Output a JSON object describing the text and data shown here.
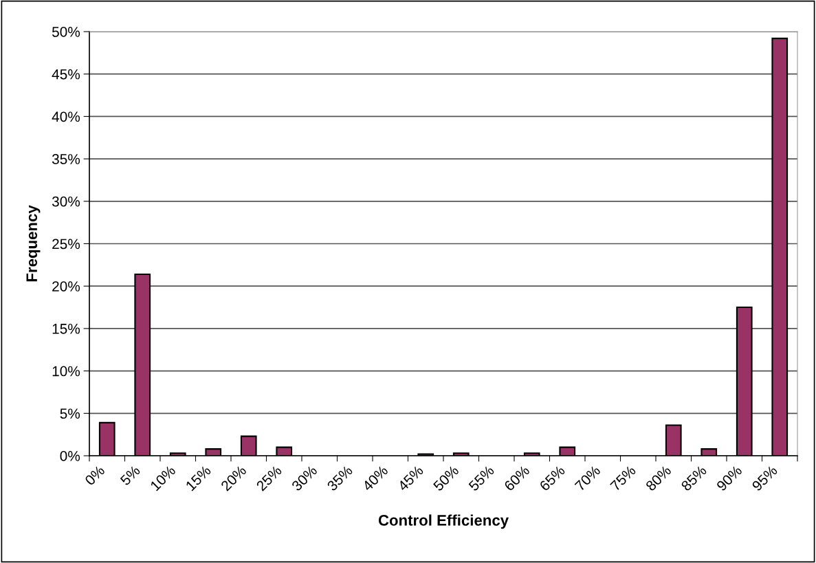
{
  "chart_data": {
    "type": "bar",
    "xlabel": "Control Efficiency",
    "ylabel": "Frequency",
    "categories": [
      "0%",
      "5%",
      "10%",
      "15%",
      "20%",
      "25%",
      "30%",
      "35%",
      "40%",
      "45%",
      "50%",
      "55%",
      "60%",
      "65%",
      "70%",
      "75%",
      "80%",
      "85%",
      "90%",
      "95%"
    ],
    "values": [
      3.9,
      21.4,
      0.3,
      0.8,
      2.3,
      1.0,
      null,
      null,
      null,
      0.2,
      0.3,
      null,
      0.3,
      1.0,
      null,
      null,
      3.6,
      0.8,
      17.5,
      49.2
    ],
    "color": "#993366",
    "ylim": [
      0,
      50
    ],
    "yticks": [
      {
        "value": 0,
        "label": "0%"
      },
      {
        "value": 5,
        "label": "5%"
      },
      {
        "value": 10,
        "label": "10%"
      },
      {
        "value": 15,
        "label": "15%"
      },
      {
        "value": 20,
        "label": "20%"
      },
      {
        "value": 25,
        "label": "25%"
      },
      {
        "value": 30,
        "label": "30%"
      },
      {
        "value": 35,
        "label": "35%"
      },
      {
        "value": 40,
        "label": "40%"
      },
      {
        "value": 45,
        "label": "45%"
      },
      {
        "value": 50,
        "label": "50%"
      }
    ],
    "grid": "y",
    "legend": false
  }
}
